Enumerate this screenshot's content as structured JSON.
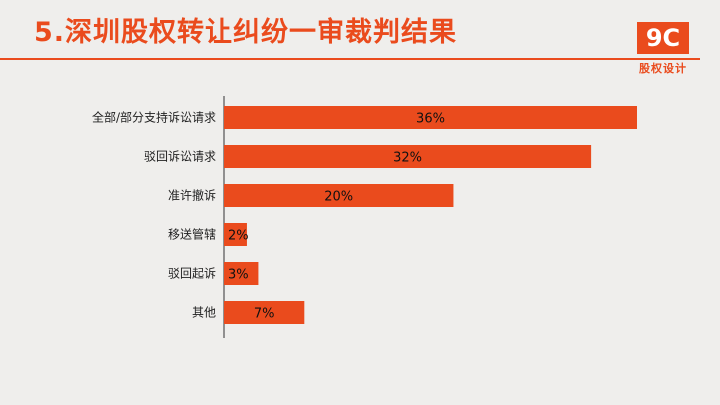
{
  "header": {
    "title": "5.深圳股权转让纠纷一审裁判结果",
    "logo_text": "9C",
    "logo_sub": "股权设计"
  },
  "colors": {
    "accent": "#ea4b1d",
    "bar": "#ea4b1d",
    "background": "#efeeec",
    "axis": "#333333"
  },
  "chart_data": {
    "type": "bar",
    "orientation": "horizontal",
    "categories": [
      "全部/部分支持诉讼请求",
      "驳回诉讼请求",
      "准许撤诉",
      "移送管辖",
      "驳回起诉",
      "其他"
    ],
    "values": [
      36,
      32,
      20,
      2,
      3,
      7
    ],
    "data_labels": [
      "36%",
      "32%",
      "20%",
      "2%",
      "3%",
      "7%"
    ],
    "unit": "%",
    "title": "",
    "xlabel": "",
    "ylabel": "",
    "xlim": [
      0,
      36
    ],
    "grid": false,
    "legend": "none"
  }
}
